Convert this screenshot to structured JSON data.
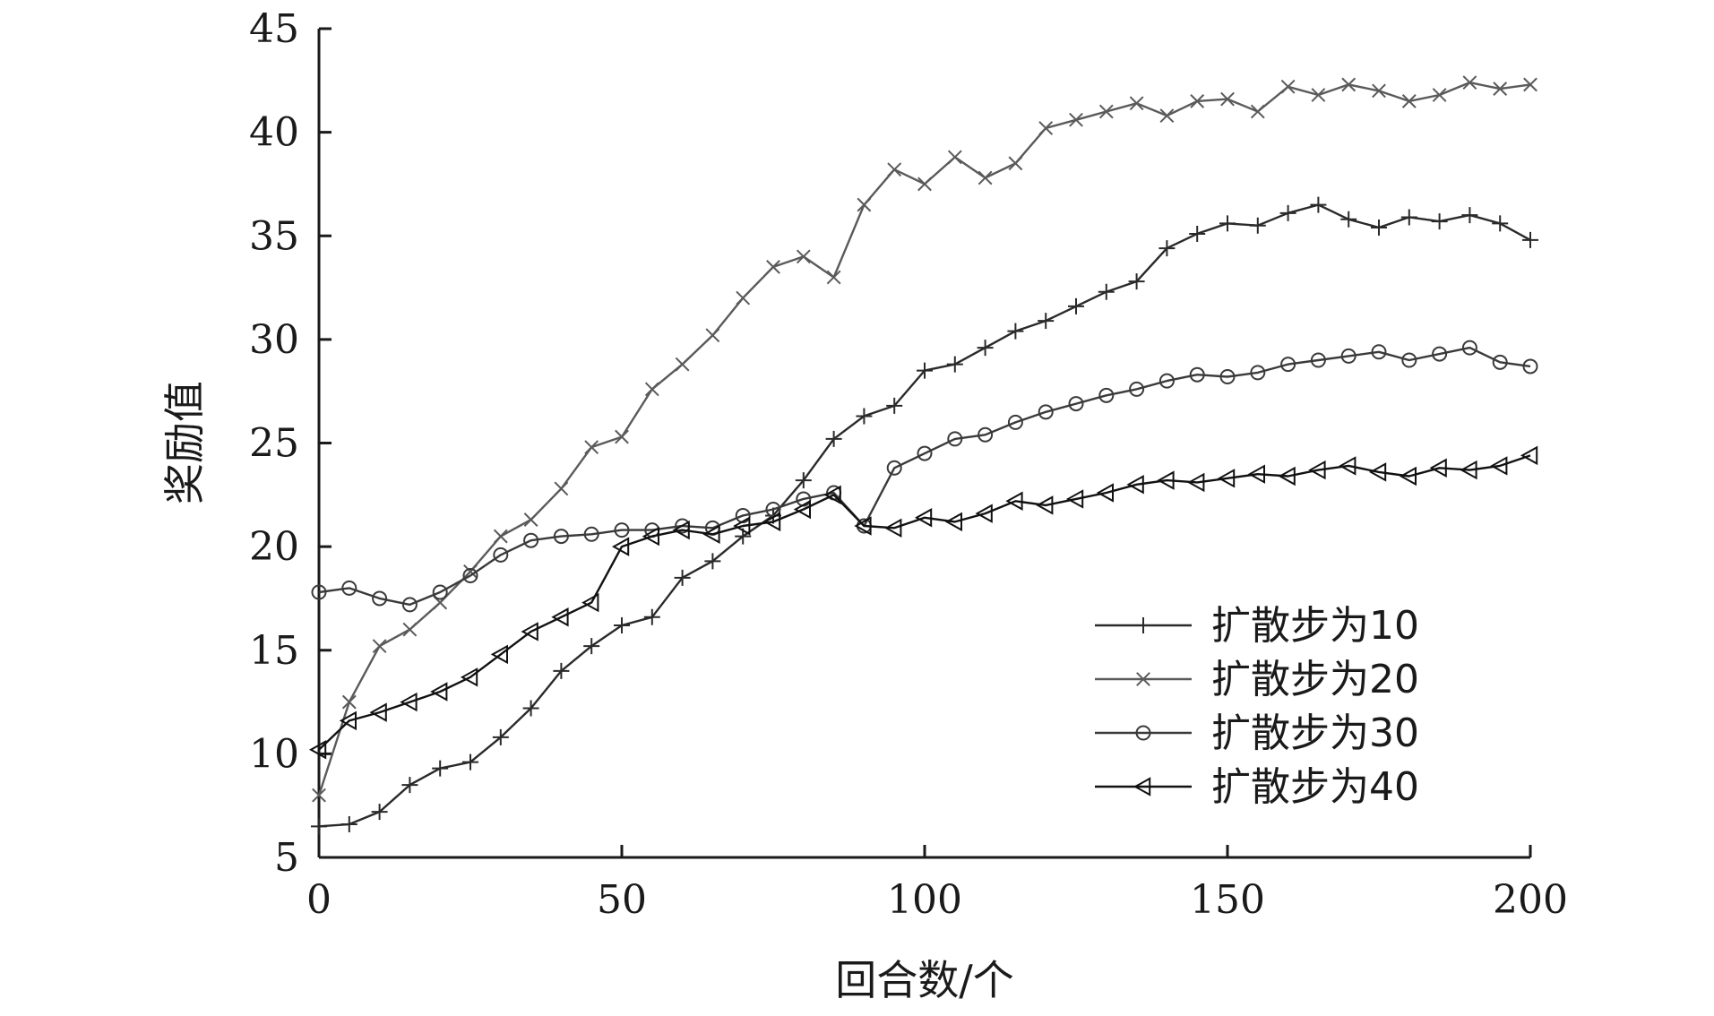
{
  "chart_data": {
    "type": "line",
    "xlabel": "回合数/个",
    "ylabel": "奖励值",
    "xlim": [
      0,
      200
    ],
    "ylim": [
      5,
      45
    ],
    "xticks": [
      "0",
      "50",
      "100",
      "150",
      "200"
    ],
    "yticks": [
      "5",
      "10",
      "15",
      "20",
      "25",
      "30",
      "35",
      "40",
      "45"
    ],
    "grid": false,
    "legend_position": "bottom-right",
    "series": [
      {
        "name": "扩散步为10",
        "marker": "plus",
        "color": "#2a2a2a",
        "x": [
          0,
          5,
          10,
          15,
          20,
          25,
          30,
          35,
          40,
          45,
          50,
          55,
          60,
          65,
          70,
          75,
          80,
          85,
          90,
          95,
          100,
          105,
          110,
          115,
          120,
          125,
          130,
          135,
          140,
          145,
          150,
          155,
          160,
          165,
          170,
          175,
          180,
          185,
          190,
          195,
          200
        ],
        "y": [
          6.5,
          6.6,
          7.2,
          8.5,
          9.3,
          9.6,
          10.8,
          12.2,
          14.0,
          15.2,
          16.2,
          16.6,
          18.5,
          19.3,
          20.5,
          21.5,
          23.2,
          25.2,
          26.3,
          26.8,
          28.5,
          28.8,
          29.6,
          30.4,
          30.9,
          31.6,
          32.3,
          32.8,
          34.4,
          35.1,
          35.6,
          35.5,
          36.1,
          36.5,
          35.8,
          35.4,
          35.9,
          35.7,
          36.0,
          35.6,
          34.8
        ]
      },
      {
        "name": "扩散步为20",
        "marker": "x",
        "color": "#5a5a5a",
        "x": [
          0,
          5,
          10,
          15,
          20,
          25,
          30,
          35,
          40,
          45,
          50,
          55,
          60,
          65,
          70,
          75,
          80,
          85,
          90,
          95,
          100,
          105,
          110,
          115,
          120,
          125,
          130,
          135,
          140,
          145,
          150,
          155,
          160,
          165,
          170,
          175,
          180,
          185,
          190,
          195,
          200
        ],
        "y": [
          8.0,
          12.5,
          15.2,
          16.0,
          17.3,
          18.8,
          20.5,
          21.3,
          22.8,
          24.8,
          25.3,
          27.6,
          28.8,
          30.2,
          32.0,
          33.5,
          34.0,
          33.0,
          36.5,
          38.2,
          37.5,
          38.8,
          37.8,
          38.5,
          40.2,
          40.6,
          41.0,
          41.4,
          40.8,
          41.5,
          41.6,
          41.0,
          42.2,
          41.8,
          42.3,
          42.0,
          41.5,
          41.8,
          42.4,
          42.1,
          42.3
        ]
      },
      {
        "name": "扩散步为30",
        "marker": "circle",
        "color": "#3a3a3a",
        "x": [
          0,
          5,
          10,
          15,
          20,
          25,
          30,
          35,
          40,
          45,
          50,
          55,
          60,
          65,
          70,
          75,
          80,
          85,
          90,
          95,
          100,
          105,
          110,
          115,
          120,
          125,
          130,
          135,
          140,
          145,
          150,
          155,
          160,
          165,
          170,
          175,
          180,
          185,
          190,
          195,
          200
        ],
        "y": [
          17.8,
          18.0,
          17.5,
          17.2,
          17.8,
          18.6,
          19.6,
          20.3,
          20.5,
          20.6,
          20.8,
          20.8,
          21.0,
          20.9,
          21.5,
          21.8,
          22.3,
          22.6,
          21.0,
          23.8,
          24.5,
          25.2,
          25.4,
          26.0,
          26.5,
          26.9,
          27.3,
          27.6,
          28.0,
          28.3,
          28.2,
          28.4,
          28.8,
          29.0,
          29.2,
          29.4,
          29.0,
          29.3,
          29.6,
          28.9,
          28.7
        ]
      },
      {
        "name": "扩散步为40",
        "marker": "triangle-left",
        "color": "#111111",
        "x": [
          0,
          5,
          10,
          15,
          20,
          25,
          30,
          35,
          40,
          45,
          50,
          55,
          60,
          65,
          70,
          75,
          80,
          85,
          90,
          95,
          100,
          105,
          110,
          115,
          120,
          125,
          130,
          135,
          140,
          145,
          150,
          155,
          160,
          165,
          170,
          175,
          180,
          185,
          190,
          195,
          200
        ],
        "y": [
          10.2,
          11.6,
          12.0,
          12.5,
          13.0,
          13.7,
          14.8,
          15.9,
          16.6,
          17.3,
          20.0,
          20.5,
          20.8,
          20.6,
          21.0,
          21.2,
          21.8,
          22.5,
          21.0,
          20.9,
          21.4,
          21.2,
          21.6,
          22.2,
          22.0,
          22.3,
          22.6,
          23.0,
          23.2,
          23.1,
          23.3,
          23.5,
          23.4,
          23.7,
          23.9,
          23.6,
          23.4,
          23.8,
          23.7,
          23.9,
          24.4
        ]
      }
    ]
  }
}
